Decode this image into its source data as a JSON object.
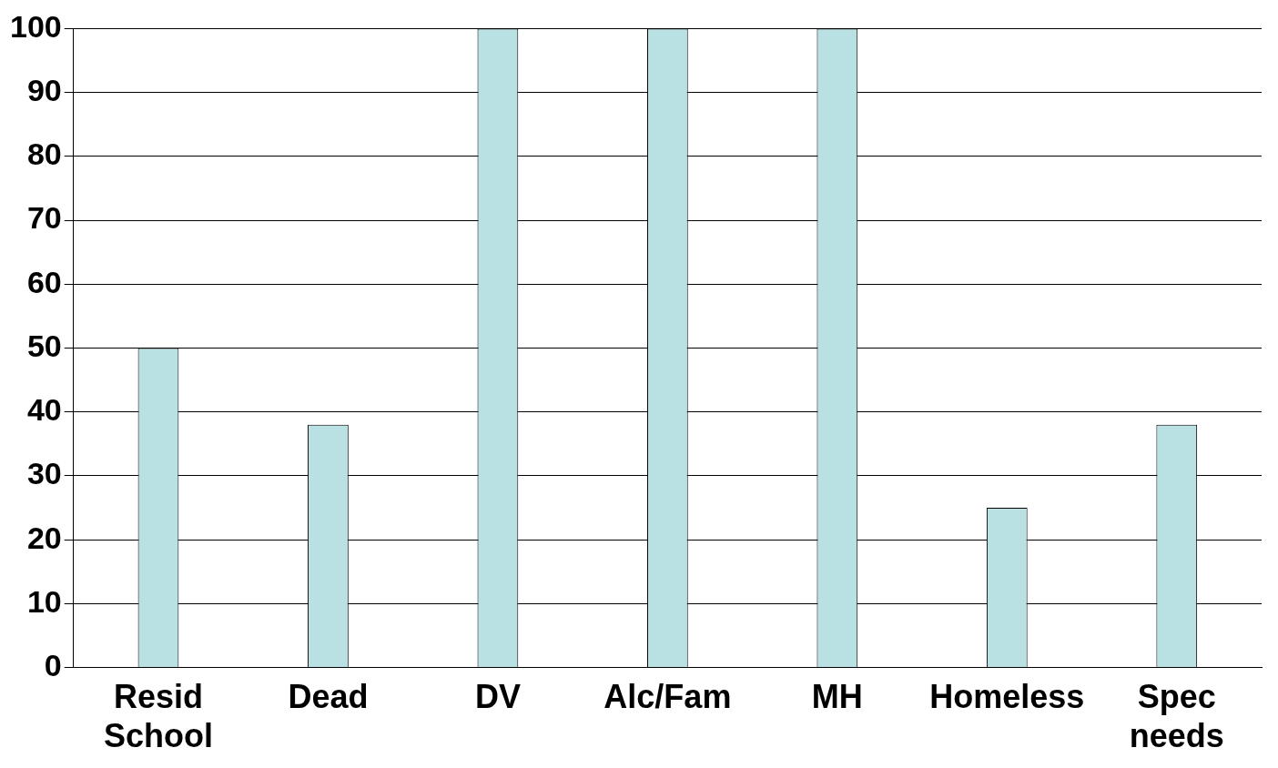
{
  "chart_data": {
    "type": "bar",
    "categories": [
      "Resid School",
      "Dead",
      "DV",
      "Alc/Fam",
      "MH",
      "Homeless",
      "Spec needs"
    ],
    "values": [
      50,
      38,
      100,
      100,
      100,
      25,
      38
    ],
    "color": "#b9e0e3",
    "ylim": [
      0,
      100
    ],
    "yticks": [
      0,
      10,
      20,
      30,
      40,
      50,
      60,
      70,
      80,
      90,
      100
    ],
    "grid": "y"
  }
}
